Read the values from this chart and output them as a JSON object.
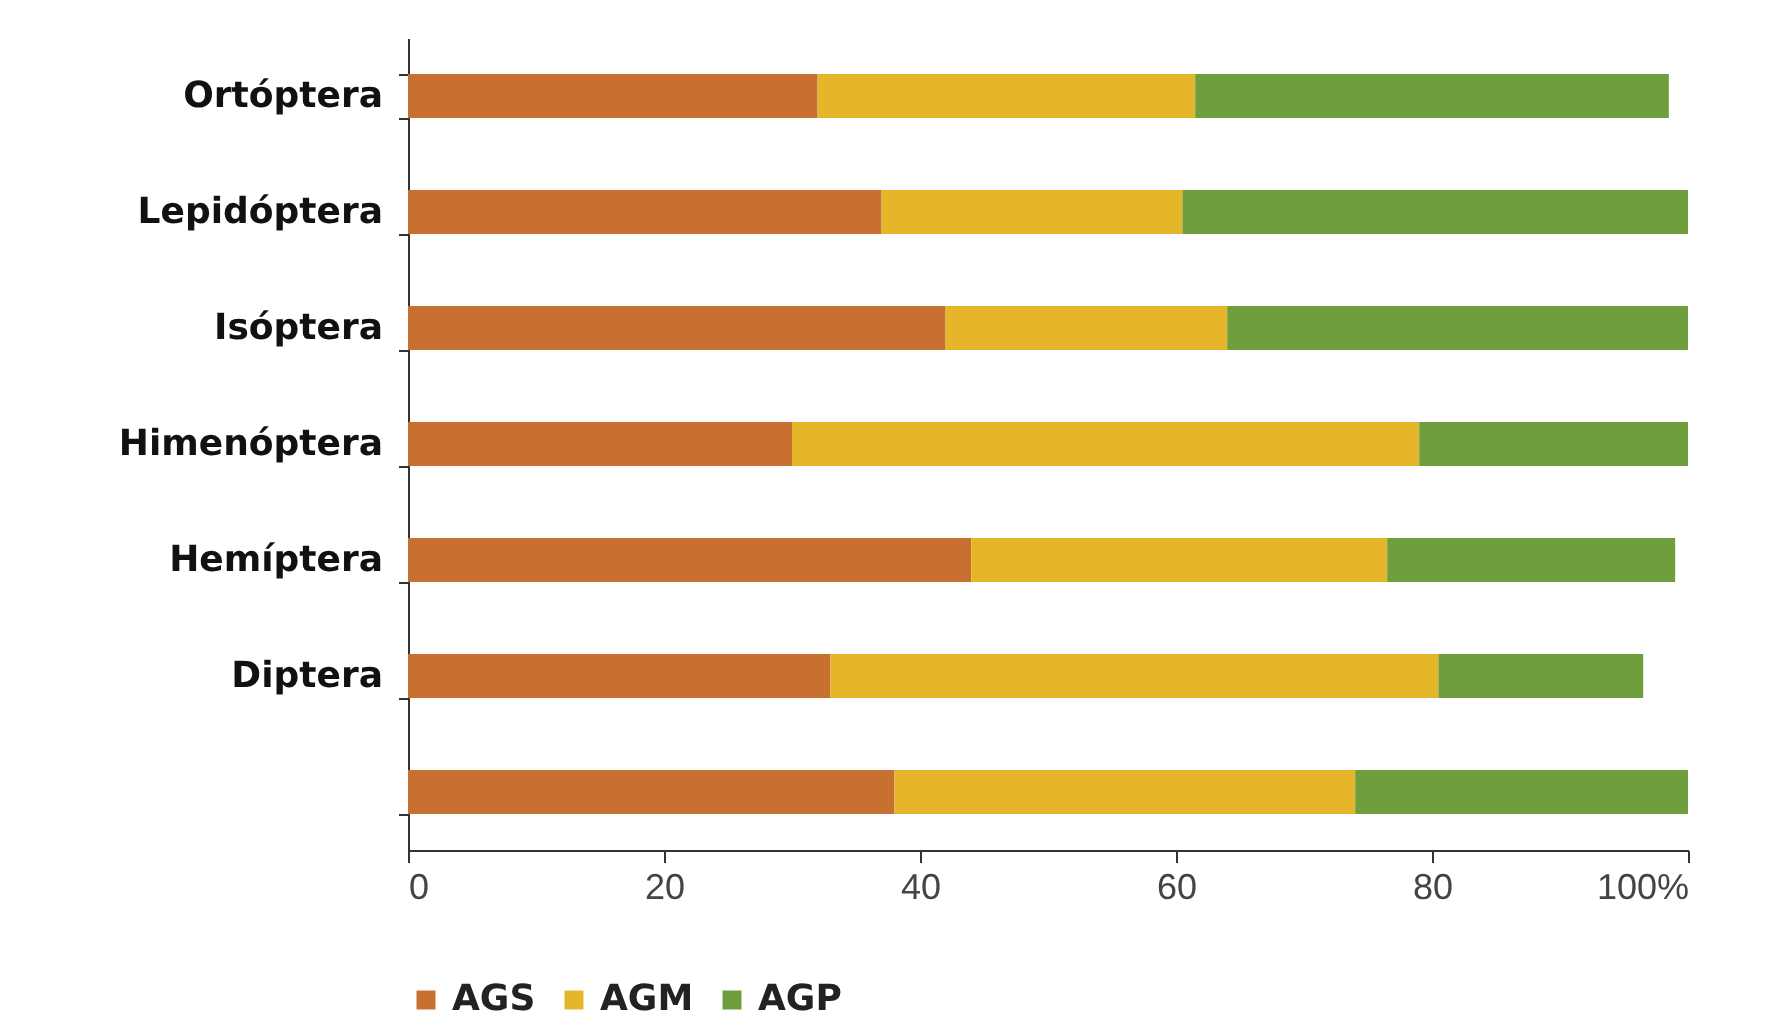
{
  "chart_data": {
    "type": "bar",
    "orientation": "horizontal",
    "stacked": true,
    "categories": [
      "Ortóptera",
      "Lepidóptera",
      "Isóptera",
      "Himenóptera",
      "Hemíptera",
      "Diptera",
      null
    ],
    "series": [
      {
        "name": "AGS",
        "color": "#c8702f",
        "values": [
          32,
          37,
          42,
          30,
          44,
          33,
          38
        ]
      },
      {
        "name": "AGM",
        "color": "#e6b62a",
        "values": [
          29.5,
          23.5,
          22,
          49,
          32.5,
          47.5,
          36
        ]
      },
      {
        "name": "AGP",
        "color": "#6f9e3c",
        "values": [
          37,
          39.5,
          36,
          21,
          22.5,
          16,
          26
        ]
      }
    ],
    "xlim": [
      0,
      100
    ],
    "xticks": [
      0,
      20,
      40,
      60,
      80,
      {
        "value": 100,
        "label": "100%"
      }
    ],
    "grid": false,
    "legend": "bottom"
  }
}
